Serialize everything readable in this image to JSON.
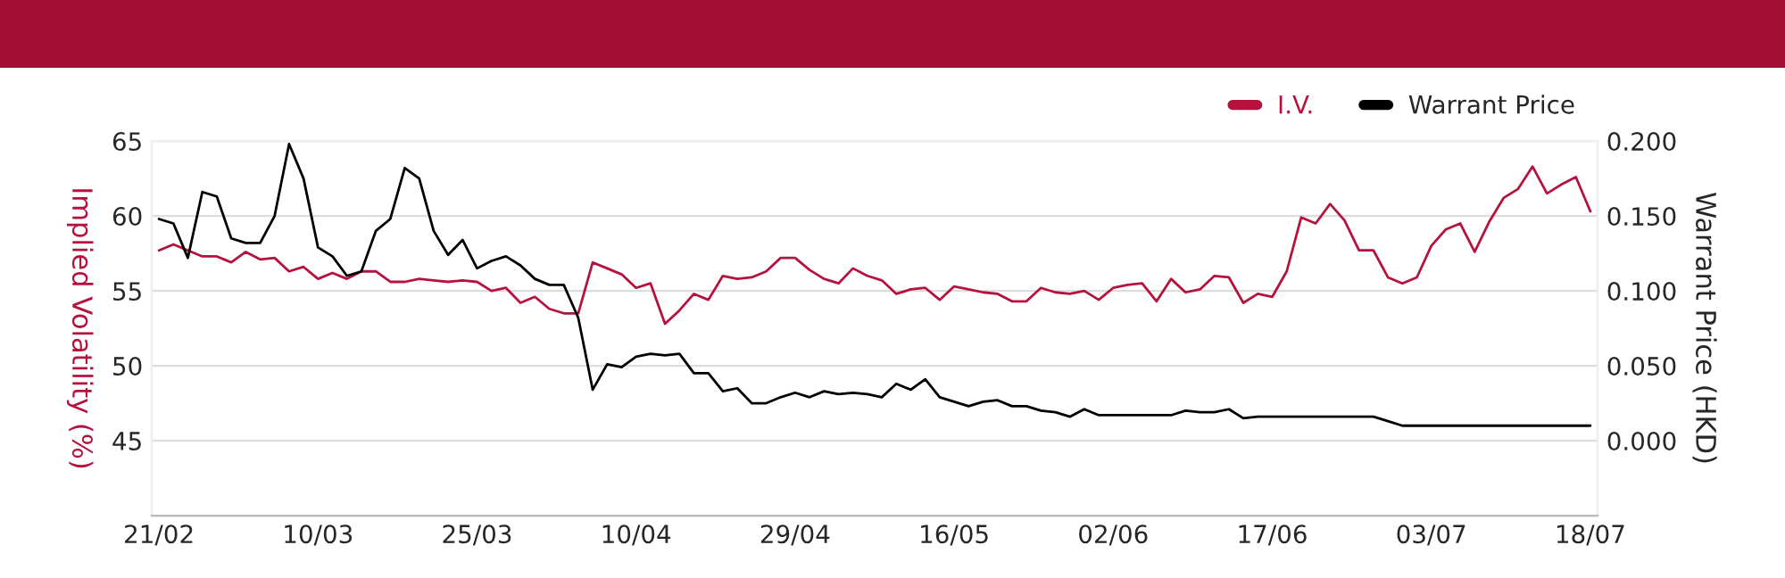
{
  "chart_data": {
    "type": "line",
    "categories": [
      "21/02",
      null,
      null,
      null,
      null,
      null,
      null,
      null,
      null,
      null,
      null,
      "10/03",
      null,
      null,
      null,
      null,
      null,
      null,
      null,
      null,
      null,
      null,
      "25/03",
      null,
      null,
      null,
      null,
      null,
      null,
      null,
      null,
      null,
      null,
      "10/04",
      null,
      null,
      null,
      null,
      null,
      null,
      null,
      null,
      null,
      null,
      "29/04",
      null,
      null,
      null,
      null,
      null,
      null,
      null,
      null,
      null,
      null,
      "16/05",
      null,
      null,
      null,
      null,
      null,
      null,
      null,
      null,
      null,
      null,
      "02/06",
      null,
      null,
      null,
      null,
      null,
      null,
      null,
      null,
      null,
      null,
      "17/06",
      null,
      null,
      null,
      null,
      null,
      null,
      null,
      null,
      null,
      null,
      "03/07",
      null,
      null,
      null,
      null,
      null,
      null,
      null,
      null,
      null,
      null,
      "18/07"
    ],
    "ylabel": "Implied Volatility (%)",
    "y2label": "Warrant Price (HKD)",
    "ylim": [
      40,
      65
    ],
    "yticks": [
      {
        "value": 40,
        "label": null
      },
      45,
      50,
      55,
      60,
      65
    ],
    "y2lim": [
      -0.05,
      0.2
    ],
    "y2ticks": [
      {
        "value": -0.05,
        "label": null
      },
      {
        "value": 0,
        "label": "0.000"
      },
      {
        "value": 0.05,
        "label": "0.050"
      },
      {
        "value": 0.1,
        "label": "0.100"
      },
      {
        "value": 0.15,
        "label": "0.150"
      },
      {
        "value": 0.2,
        "label": "0.200"
      }
    ],
    "grid": "y",
    "legend": "top right",
    "marker": "none",
    "line_style": "solid",
    "series": [
      {
        "name": "I.V.",
        "color": "#b5123e",
        "values": [
          57.7,
          58.1,
          57.7,
          57.3,
          57.3,
          56.9,
          57.6,
          57.1,
          57.2,
          56.3,
          56.6,
          55.8,
          56.2,
          55.8,
          56.3,
          56.3,
          55.6,
          55.6,
          55.8,
          55.7,
          55.6,
          55.7,
          55.6,
          55.0,
          55.2,
          54.2,
          54.6,
          53.8,
          53.5,
          53.5,
          56.9,
          56.5,
          56.1,
          55.2,
          55.5,
          52.8,
          53.7,
          54.8,
          54.4,
          56.0,
          55.8,
          55.9,
          56.3,
          57.2,
          57.2,
          56.4,
          55.8,
          55.5,
          56.5,
          56.0,
          55.7,
          54.8,
          55.1,
          55.2,
          54.4,
          55.3,
          55.1,
          54.9,
          54.8,
          54.3,
          54.3,
          55.2,
          54.9,
          54.8,
          55.0,
          54.4,
          55.2,
          55.4,
          55.5,
          54.3,
          55.8,
          54.9,
          55.1,
          56.0,
          55.9,
          54.2,
          54.8,
          54.6,
          56.3,
          59.9,
          59.5,
          60.8,
          59.7,
          57.7,
          57.7,
          55.9,
          55.5,
          55.9,
          58.0,
          59.1,
          59.5,
          57.6,
          59.6,
          61.2,
          61.8,
          63.3,
          61.5,
          62.1,
          62.6,
          60.3
        ]
      },
      {
        "name": "Warrant Price",
        "color": "#000000",
        "axis": "y2",
        "values": [
          0.148,
          0.145,
          0.122,
          0.166,
          0.163,
          0.135,
          0.132,
          0.132,
          0.15,
          0.198,
          0.175,
          0.129,
          0.123,
          0.11,
          0.113,
          0.14,
          0.148,
          0.182,
          0.175,
          0.14,
          0.124,
          0.134,
          0.115,
          0.12,
          0.123,
          0.117,
          0.108,
          0.104,
          0.104,
          0.082,
          0.034,
          0.051,
          0.049,
          0.056,
          0.058,
          0.057,
          0.058,
          0.045,
          0.045,
          0.033,
          0.035,
          0.025,
          0.025,
          0.029,
          0.032,
          0.029,
          0.033,
          0.031,
          0.032,
          0.031,
          0.029,
          0.038,
          0.034,
          0.041,
          0.029,
          0.026,
          0.023,
          0.026,
          0.027,
          0.023,
          0.023,
          0.02,
          0.019,
          0.016,
          0.021,
          0.017,
          0.017,
          0.017,
          0.017,
          0.017,
          0.017,
          0.02,
          0.019,
          0.019,
          0.021,
          0.015,
          0.016,
          0.016,
          0.016,
          0.016,
          0.016,
          0.016,
          0.016,
          0.016,
          0.016,
          0.013,
          0.01,
          0.01,
          0.01,
          0.01,
          0.01,
          0.01,
          0.01,
          0.01,
          0.01,
          0.01,
          0.01,
          0.01,
          0.01,
          0.01
        ]
      }
    ]
  }
}
